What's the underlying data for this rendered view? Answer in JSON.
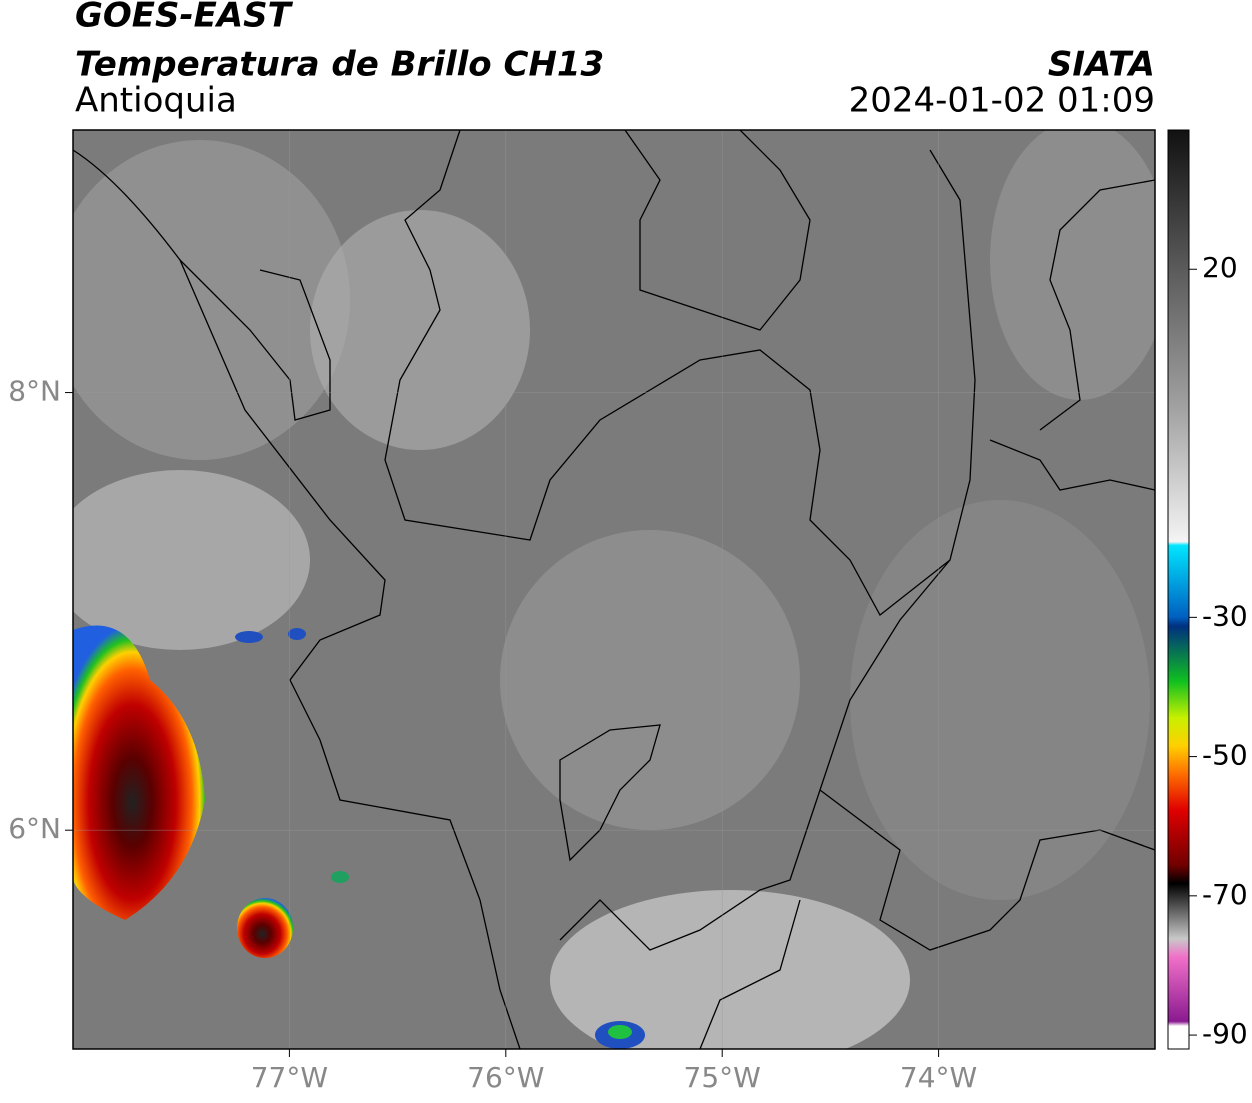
{
  "header": {
    "title": "GOES-EAST",
    "subtitle": "Temperatura de Brillo CH13",
    "source": "SIATA",
    "region": "Antioquia",
    "datetime": "2024-01-02 01:09"
  },
  "map": {
    "xlim": [
      -78,
      -73
    ],
    "ylim": [
      5,
      9.2
    ],
    "xticks": [
      {
        "value": -77,
        "label": "77°W"
      },
      {
        "value": -76,
        "label": "76°W"
      },
      {
        "value": -75,
        "label": "75°W"
      },
      {
        "value": -74,
        "label": "74°W"
      }
    ],
    "yticks": [
      {
        "value": 6,
        "label": "6°N"
      },
      {
        "value": 8,
        "label": "8°N"
      }
    ],
    "grid": true
  },
  "colorbar": {
    "lim": [
      -92,
      40
    ],
    "ticks": [
      20,
      -30,
      -50,
      -70,
      -90
    ]
  }
}
